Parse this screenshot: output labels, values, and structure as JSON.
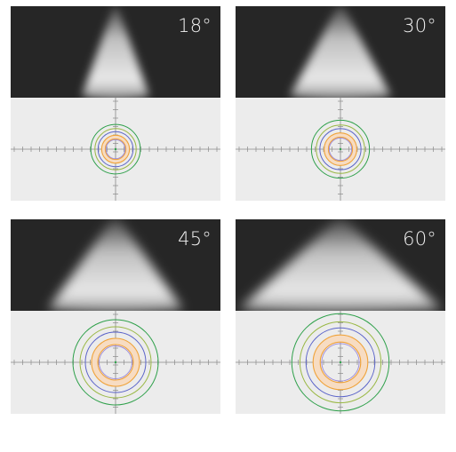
{
  "panels": [
    {
      "id": "18",
      "label": "18°",
      "beam_angle_deg": 18,
      "rings": 6
    },
    {
      "id": "30",
      "label": "30°",
      "beam_angle_deg": 30,
      "rings": 6
    },
    {
      "id": "45",
      "label": "45°",
      "beam_angle_deg": 45,
      "rings": 6
    },
    {
      "id": "60",
      "label": "60°",
      "beam_angle_deg": 60,
      "rings": 6
    }
  ],
  "colors": {
    "beam_background": "#262626",
    "plot_background": "#ececec",
    "axis": "#8a8a8a",
    "ring_outer": "#2ea04a",
    "ring_second": "#9ab845",
    "ring_third": "#5b64c9",
    "ring_fill_inner": "#f7dcc2",
    "ring_orange": "#f0a33a",
    "ring_inner": "#9b8adb"
  },
  "icons": {
    "beam": "light-beam-icon",
    "plot": "isolux-diagram-icon"
  }
}
